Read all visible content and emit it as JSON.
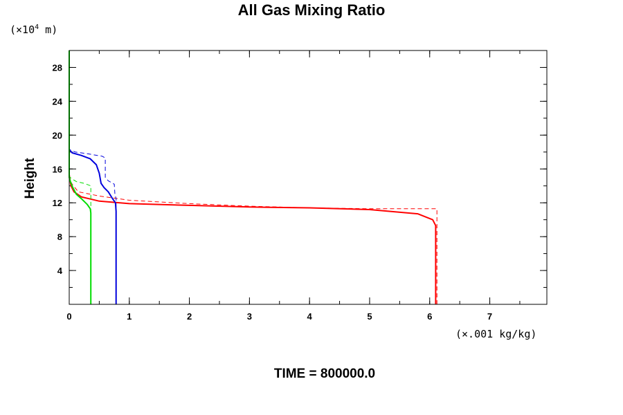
{
  "title": "All Gas Mixing Ratio",
  "time_label": "TIME = 800000.0",
  "chart_data": {
    "type": "line",
    "title": "All Gas Mixing Ratio",
    "xlabel": "",
    "ylabel": "Height",
    "x_unit": {
      "prefix": "(×.001 kg/kg)"
    },
    "y_unit": {
      "base": "(×10",
      "exp": "4",
      "suffix": " m)"
    },
    "xlim": [
      0,
      7.95
    ],
    "ylim": [
      0,
      30
    ],
    "x_ticks": [
      0,
      1,
      2,
      3,
      4,
      5,
      6,
      7
    ],
    "y_ticks": [
      4,
      8,
      12,
      16,
      20,
      24,
      28
    ],
    "x_minor_step": 0.5,
    "y_minor_step": 2,
    "grid": false,
    "series": [
      {
        "color": "#ff0000",
        "style": "solid",
        "points": [
          [
            6.1,
            0
          ],
          [
            6.1,
            9.3
          ],
          [
            6.05,
            10.0
          ],
          [
            5.8,
            10.7
          ],
          [
            5.0,
            11.2
          ],
          [
            4.0,
            11.4
          ],
          [
            3.0,
            11.5
          ],
          [
            2.0,
            11.7
          ],
          [
            1.0,
            11.9
          ],
          [
            0.5,
            12.2
          ],
          [
            0.2,
            12.7
          ],
          [
            0.08,
            13.3
          ],
          [
            0.03,
            14.0
          ],
          [
            0.01,
            14.8
          ],
          [
            0,
            15.3
          ]
        ]
      },
      {
        "color": "#ff0000",
        "style": "dashed",
        "points": [
          [
            6.12,
            0
          ],
          [
            6.12,
            11.3
          ],
          [
            5.0,
            11.3
          ],
          [
            4.0,
            11.4
          ],
          [
            3.0,
            11.6
          ],
          [
            2.0,
            11.9
          ],
          [
            1.0,
            12.3
          ],
          [
            0.5,
            12.8
          ],
          [
            0.15,
            13.3
          ],
          [
            0.05,
            14.2
          ],
          [
            0,
            14.8
          ]
        ]
      },
      {
        "color": "#0000dd",
        "style": "solid",
        "points": [
          [
            0.78,
            0
          ],
          [
            0.78,
            7.8
          ],
          [
            0.78,
            11.0
          ],
          [
            0.77,
            12.0
          ],
          [
            0.72,
            12.5
          ],
          [
            0.65,
            13.3
          ],
          [
            0.58,
            13.8
          ],
          [
            0.53,
            14.3
          ],
          [
            0.5,
            15.5
          ],
          [
            0.45,
            16.5
          ],
          [
            0.35,
            17.2
          ],
          [
            0.2,
            17.6
          ],
          [
            0.05,
            17.9
          ],
          [
            0,
            18.3
          ]
        ]
      },
      {
        "color": "#0000dd",
        "style": "dashed",
        "points": [
          [
            0.78,
            0
          ],
          [
            0.78,
            11.0
          ],
          [
            0.78,
            12.5
          ],
          [
            0.76,
            13.0
          ],
          [
            0.75,
            14.2
          ],
          [
            0.65,
            14.6
          ],
          [
            0.6,
            15.0
          ],
          [
            0.6,
            17.3
          ],
          [
            0.55,
            17.5
          ],
          [
            0.3,
            17.8
          ],
          [
            0.1,
            18.0
          ],
          [
            0,
            18.3
          ],
          [
            0,
            18.8
          ]
        ]
      },
      {
        "color": "#00dd00",
        "style": "solid",
        "points": [
          [
            0.36,
            0
          ],
          [
            0.36,
            10.8
          ],
          [
            0.35,
            11.3
          ],
          [
            0.3,
            11.8
          ],
          [
            0.2,
            12.5
          ],
          [
            0.12,
            13.0
          ],
          [
            0.06,
            13.8
          ],
          [
            0.02,
            14.5
          ],
          [
            0,
            15.0
          ],
          [
            0,
            30
          ]
        ]
      },
      {
        "color": "#00dd00",
        "style": "dashed",
        "points": [
          [
            0.36,
            10.8
          ],
          [
            0.36,
            14.0
          ],
          [
            0.25,
            14.3
          ],
          [
            0.12,
            14.5
          ],
          [
            0.05,
            14.8
          ],
          [
            0,
            15.1
          ]
        ]
      }
    ]
  }
}
